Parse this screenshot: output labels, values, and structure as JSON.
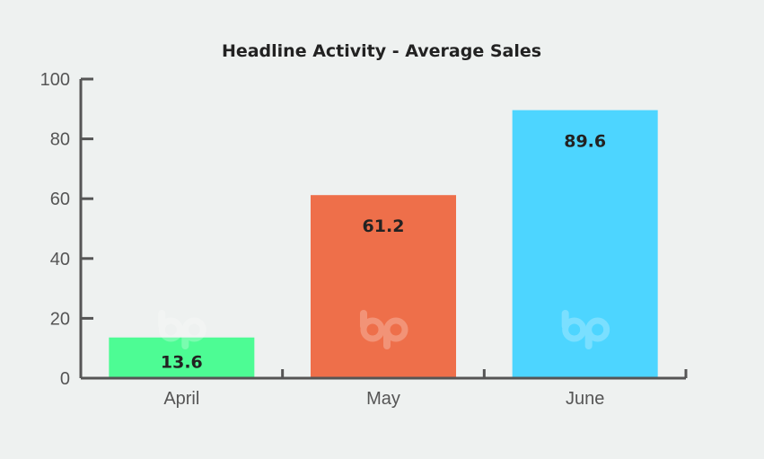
{
  "chart_data": {
    "type": "bar",
    "title": "Headline Activity - Average Sales",
    "categories": [
      "April",
      "May",
      "June"
    ],
    "values": [
      13.6,
      61.2,
      89.6
    ],
    "value_labels": [
      "13.6",
      "61.2",
      "89.6"
    ],
    "colors": [
      "#4dfc94",
      "#ee6f4a",
      "#4dd5ff"
    ],
    "ylim": [
      0,
      100
    ],
    "yticks": [
      0,
      20,
      40,
      60,
      80,
      100
    ],
    "ytick_labels": [
      "0",
      "20",
      "40",
      "60",
      "80",
      "100"
    ],
    "xlabel": "",
    "ylabel": "",
    "grid": false,
    "legend": "none",
    "watermark_icon": "bp-logo-icon"
  }
}
